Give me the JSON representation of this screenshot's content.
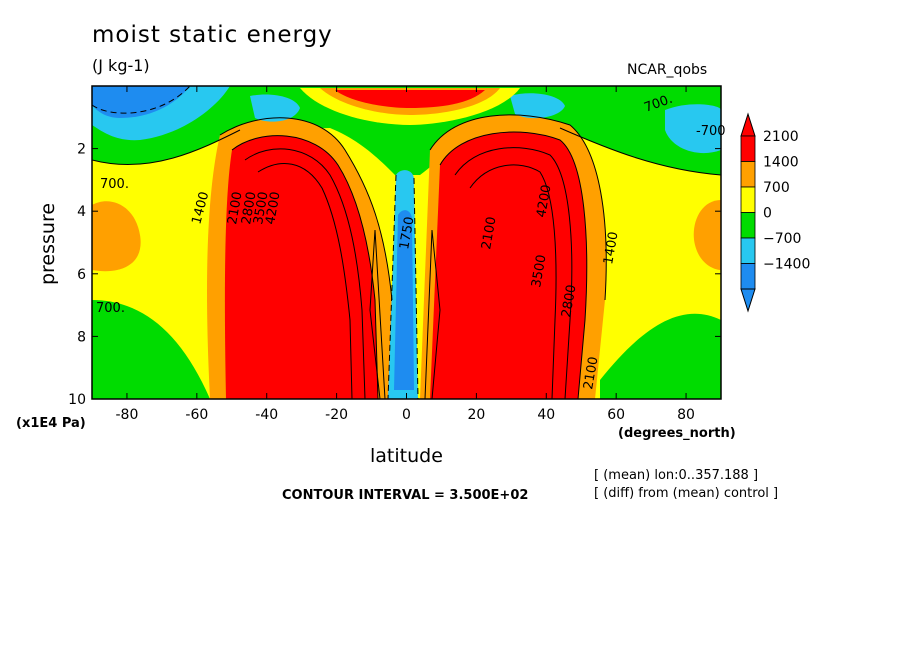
{
  "chart_data": {
    "type": "heatmap",
    "title": "moist static energy",
    "units": "(J kg-1)",
    "source_label": "NCAR_qobs",
    "xlabel": "latitude",
    "x_units": "(degrees_north)",
    "ylabel": "pressure",
    "y_units": "(x1E4 Pa)",
    "xlim": [
      -90,
      90
    ],
    "ylim": [
      10,
      0
    ],
    "x_ticks": [
      -80,
      -60,
      -40,
      -20,
      0,
      20,
      40,
      60,
      80
    ],
    "y_ticks": [
      2,
      4,
      6,
      8,
      10
    ],
    "contour_interval_label": "CONTOUR INTERVAL = 3.500E+02",
    "notes": [
      "[ (mean) lon:0..357.188 ]",
      "[ (diff) from (mean) control ]"
    ],
    "colorbar": {
      "levels": [
        -1400,
        -700,
        0,
        700,
        1400,
        2100
      ],
      "labels": [
        "2100",
        "1400",
        "700",
        "0",
        "−700",
        "−1400"
      ],
      "colors": [
        "#1e8cf0",
        "#28c8f0",
        "#00dc00",
        "#ffff00",
        "#ffa000",
        "#ff0000"
      ]
    },
    "contour_labels": [
      "700.",
      "1400",
      "2100",
      "2800",
      "3500",
      "4200",
      "-700",
      "1750"
    ],
    "grid": false,
    "legend_position": "right"
  }
}
